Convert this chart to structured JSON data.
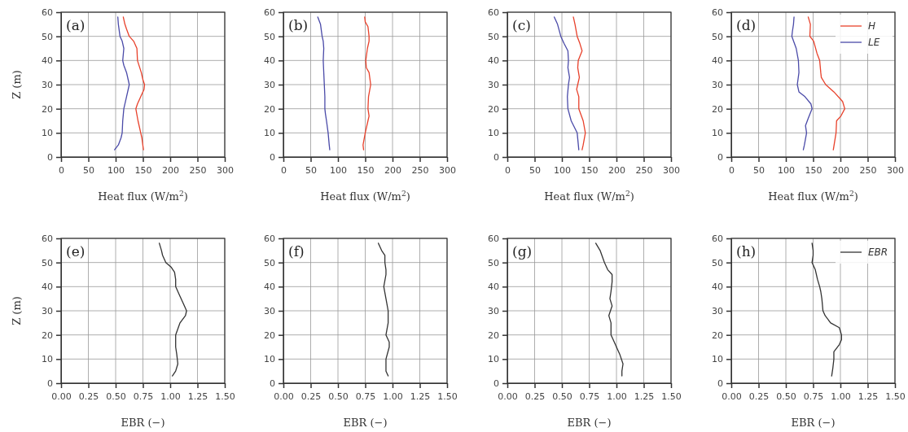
{
  "chart_data": [
    {
      "type": "line",
      "title": "(a)",
      "xlabel": "Heat flux (W/m$^{2}$)",
      "ylabel": "Z (m)",
      "xlim": [
        0,
        300
      ],
      "xticks": [
        0,
        50,
        100,
        150,
        200,
        250,
        300
      ],
      "ylim": [
        0,
        60
      ],
      "yticks": [
        0,
        10,
        20,
        30,
        40,
        50,
        60
      ],
      "grid": true,
      "legend": false,
      "series": [
        {
          "color": "#e8412b",
          "x": [
            151,
            148,
            146,
            141,
            137,
            140,
            146,
            152,
            153,
            150,
            147,
            140,
            139,
            133,
            125,
            120,
            117,
            114
          ],
          "values": [
            3,
            8,
            10,
            15,
            20,
            22,
            25,
            28,
            30,
            32,
            35,
            40,
            45,
            48,
            50,
            53,
            55,
            58
          ]
        },
        {
          "color": "#4a4aa8",
          "x": [
            98,
            105,
            110,
            112,
            113,
            115,
            120,
            125,
            120,
            115,
            113,
            115,
            112,
            108,
            105,
            104
          ],
          "values": [
            3,
            5,
            8,
            10,
            15,
            20,
            25,
            30,
            35,
            38,
            40,
            45,
            48,
            50,
            55,
            58
          ]
        }
      ]
    },
    {
      "type": "line",
      "title": "(b)",
      "xlabel": "Heat flux (W/m$^{2}$)",
      "xlim": [
        0,
        300
      ],
      "xticks": [
        0,
        50,
        100,
        150,
        200,
        250,
        300
      ],
      "ylim": [
        0,
        60
      ],
      "yticks": [
        0,
        10,
        20,
        30,
        40,
        50,
        60
      ],
      "grid": true,
      "legend": false,
      "series": [
        {
          "color": "#e8412b",
          "x": [
            147,
            146,
            150,
            155,
            157,
            155,
            156,
            160,
            157,
            152,
            151,
            154,
            157,
            157,
            155,
            150,
            149
          ],
          "values": [
            3,
            5,
            10,
            15,
            17,
            20,
            25,
            30,
            35,
            37,
            40,
            45,
            48,
            50,
            54,
            56,
            58
          ]
        },
        {
          "color": "#4a4aa8",
          "x": [
            85,
            84,
            82,
            79,
            77,
            76,
            76,
            75,
            74,
            73,
            74,
            73,
            71,
            68,
            63
          ],
          "values": [
            3,
            5,
            10,
            15,
            18,
            20,
            25,
            30,
            35,
            40,
            45,
            48,
            50,
            55,
            58
          ]
        }
      ]
    },
    {
      "type": "line",
      "title": "(c)",
      "xlabel": "Heat flux (W/m$^{2}$)",
      "xlim": [
        0,
        300
      ],
      "xticks": [
        0,
        50,
        100,
        150,
        200,
        250,
        300
      ],
      "ylim": [
        0,
        60
      ],
      "yticks": [
        0,
        10,
        20,
        30,
        40,
        50,
        60
      ],
      "grid": true,
      "legend": false,
      "series": [
        {
          "color": "#e8412b",
          "x": [
            137,
            139,
            143,
            139,
            131,
            131,
            127,
            129,
            132,
            129,
            130,
            137,
            133,
            128,
            124,
            121
          ],
          "values": [
            3,
            5,
            10,
            15,
            20,
            25,
            28,
            30,
            33,
            37,
            40,
            44,
            47,
            50,
            55,
            58
          ]
        },
        {
          "color": "#4a4aa8",
          "x": [
            131,
            128,
            117,
            111,
            110,
            112,
            114,
            111,
            112,
            111,
            104,
            98,
            92,
            86
          ],
          "values": [
            3,
            10,
            15,
            20,
            25,
            30,
            33,
            37,
            40,
            44,
            47,
            50,
            55,
            58
          ]
        }
      ]
    },
    {
      "type": "line",
      "title": "(d)",
      "xlabel": "Heat flux (W/m$^{2}$)",
      "xlim": [
        0,
        300
      ],
      "xticks": [
        0,
        50,
        100,
        150,
        200,
        250,
        300
      ],
      "ylim": [
        0,
        60
      ],
      "yticks": [
        0,
        10,
        20,
        30,
        40,
        50,
        60
      ],
      "grid": true,
      "legend": "top right",
      "series": [
        {
          "name": "H",
          "color": "#e8412b",
          "x": [
            187,
            192,
            193,
            201,
            208,
            204,
            188,
            173,
            165,
            164,
            162,
            157,
            151,
            144,
            145,
            141
          ],
          "values": [
            3,
            10,
            15,
            17,
            20,
            23,
            27,
            30,
            33,
            35,
            40,
            43,
            48,
            50,
            55,
            58
          ]
        },
        {
          "name": "LE",
          "color": "#4a4aa8",
          "x": [
            132,
            134,
            138,
            136,
            141,
            148,
            146,
            135,
            124,
            121,
            124,
            123,
            119,
            111,
            112,
            114,
            115
          ],
          "values": [
            3,
            5,
            10,
            13,
            16,
            20,
            22,
            25,
            27,
            30,
            35,
            40,
            45,
            50,
            52,
            55,
            58
          ]
        }
      ]
    },
    {
      "type": "line",
      "title": "(e)",
      "xlabel": "EBR (−)",
      "ylabel": "Z (m)",
      "xlim": [
        0,
        1.5
      ],
      "xticks": [
        {
          "value": 0,
          "label": "0.00"
        },
        {
          "value": 0.25,
          "label": "0.25"
        },
        {
          "value": 0.5,
          "label": "0.50"
        },
        {
          "value": 0.75,
          "label": "0.75"
        },
        {
          "value": 1,
          "label": "1.00"
        },
        {
          "value": 1.25,
          "label": "1.25"
        },
        {
          "value": 1.5,
          "label": "1.50"
        }
      ],
      "ylim": [
        0,
        60
      ],
      "yticks": [
        0,
        10,
        20,
        30,
        40,
        50,
        60
      ],
      "grid": true,
      "legend": false,
      "series": [
        {
          "color": "#333333",
          "x": [
            1.02,
            1.05,
            1.07,
            1.06,
            1.05,
            1.05,
            1.09,
            1.14,
            1.15,
            1.12,
            1.09,
            1.05,
            1.05,
            1.04,
            1.01,
            0.96,
            0.93,
            0.92,
            0.9
          ],
          "values": [
            3,
            5,
            8,
            12,
            15,
            20,
            25,
            28,
            30,
            33,
            36,
            40,
            43,
            46,
            48,
            50,
            53,
            55,
            58
          ]
        }
      ]
    },
    {
      "type": "line",
      "title": "(f)",
      "xlabel": "EBR (−)",
      "xlim": [
        0,
        1.5
      ],
      "xticks": [
        {
          "value": 0,
          "label": "0.00"
        },
        {
          "value": 0.25,
          "label": "0.25"
        },
        {
          "value": 0.5,
          "label": "0.50"
        },
        {
          "value": 0.75,
          "label": "0.75"
        },
        {
          "value": 1,
          "label": "1.00"
        },
        {
          "value": 1.25,
          "label": "1.25"
        },
        {
          "value": 1.5,
          "label": "1.50"
        }
      ],
      "ylim": [
        0,
        60
      ],
      "yticks": [
        0,
        10,
        20,
        30,
        40,
        50,
        60
      ],
      "grid": true,
      "legend": false,
      "series": [
        {
          "color": "#333333",
          "x": [
            0.96,
            0.94,
            0.94,
            0.97,
            0.97,
            0.94,
            0.96,
            0.96,
            0.94,
            0.92,
            0.94,
            0.94,
            0.93,
            0.93,
            0.9,
            0.87
          ],
          "values": [
            3,
            5,
            10,
            15,
            17,
            20,
            25,
            30,
            35,
            40,
            45,
            47,
            50,
            53,
            55,
            58
          ]
        }
      ]
    },
    {
      "type": "line",
      "title": "(g)",
      "xlabel": "EBR (−)",
      "xlim": [
        0,
        1.5
      ],
      "xticks": [
        {
          "value": 0,
          "label": "0.00"
        },
        {
          "value": 0.25,
          "label": "0.25"
        },
        {
          "value": 0.5,
          "label": "0.50"
        },
        {
          "value": 0.75,
          "label": "0.75"
        },
        {
          "value": 1,
          "label": "1.00"
        },
        {
          "value": 1.25,
          "label": "1.25"
        },
        {
          "value": 1.5,
          "label": "1.50"
        }
      ],
      "ylim": [
        0,
        60
      ],
      "yticks": [
        0,
        10,
        20,
        30,
        40,
        50,
        60
      ],
      "grid": true,
      "legend": false,
      "series": [
        {
          "color": "#333333",
          "x": [
            1.05,
            1.05,
            1.06,
            1.03,
            1.0,
            0.97,
            0.95,
            0.95,
            0.93,
            0.96,
            0.94,
            0.95,
            0.96,
            0.96,
            0.92,
            0.89,
            0.85,
            0.81
          ],
          "values": [
            3,
            5,
            8,
            12,
            15,
            18,
            20,
            25,
            28,
            32,
            35,
            38,
            42,
            45,
            47,
            50,
            55,
            58
          ]
        }
      ]
    },
    {
      "type": "line",
      "title": "(h)",
      "xlabel": "EBR (−)",
      "xlim": [
        0,
        1.5
      ],
      "xticks": [
        {
          "value": 0,
          "label": "0.00"
        },
        {
          "value": 0.25,
          "label": "0.25"
        },
        {
          "value": 0.5,
          "label": "0.50"
        },
        {
          "value": 0.75,
          "label": "0.75"
        },
        {
          "value": 1,
          "label": "1.00"
        },
        {
          "value": 1.25,
          "label": "1.25"
        },
        {
          "value": 1.5,
          "label": "1.50"
        }
      ],
      "ylim": [
        0,
        60
      ],
      "yticks": [
        0,
        10,
        20,
        30,
        40,
        50,
        60
      ],
      "grid": true,
      "legend": "top right",
      "series": [
        {
          "name": "EBR",
          "color": "#333333",
          "x": [
            0.92,
            0.93,
            0.94,
            0.94,
            0.99,
            1.01,
            1.01,
            0.99,
            0.91,
            0.86,
            0.84,
            0.83,
            0.82,
            0.81,
            0.79,
            0.77,
            0.74,
            0.75,
            0.75,
            0.74
          ],
          "values": [
            3,
            6,
            10,
            13,
            16,
            18,
            20,
            23,
            25,
            28,
            30,
            35,
            38,
            40,
            43,
            47,
            50,
            53,
            55,
            58
          ]
        }
      ]
    }
  ]
}
